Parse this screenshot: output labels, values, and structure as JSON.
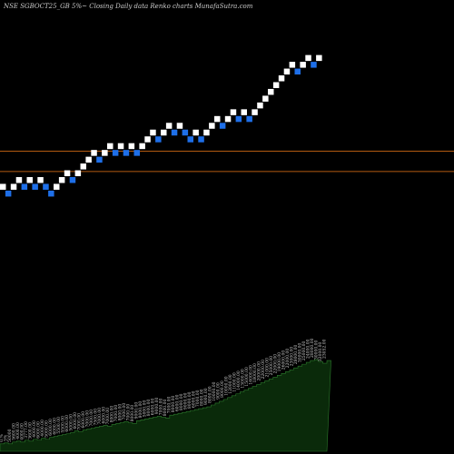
{
  "chart_data": {
    "type": "renko",
    "title": "NSE SGBOCT25_GB 5%~  Closing Daily data  Renko  charts MunafaSutra.com",
    "legend": "none",
    "grid": false,
    "colors": {
      "background": "#000000",
      "up_brick": "#ffffff",
      "down_brick": "#1e6fe8",
      "volume_fill": "#0a2a0a",
      "volume_line": "#2c7a2c",
      "level_line": "#b35a10"
    },
    "price_range": [
      6000,
      9000
    ],
    "level_lines": [
      7430,
      7190
    ],
    "bricks": [
      {
        "value": 7010,
        "dir": "up"
      },
      {
        "value": 6930,
        "dir": "down"
      },
      {
        "value": 7010,
        "dir": "up"
      },
      {
        "value": 7090,
        "dir": "up"
      },
      {
        "value": 7010,
        "dir": "down"
      },
      {
        "value": 7090,
        "dir": "up"
      },
      {
        "value": 7010,
        "dir": "down"
      },
      {
        "value": 7090,
        "dir": "up"
      },
      {
        "value": 7010,
        "dir": "down"
      },
      {
        "value": 6930,
        "dir": "down"
      },
      {
        "value": 7010,
        "dir": "up"
      },
      {
        "value": 7090,
        "dir": "up"
      },
      {
        "value": 7170,
        "dir": "up"
      },
      {
        "value": 7090,
        "dir": "down"
      },
      {
        "value": 7170,
        "dir": "up"
      },
      {
        "value": 7250,
        "dir": "up"
      },
      {
        "value": 7330,
        "dir": "up"
      },
      {
        "value": 7410,
        "dir": "up"
      },
      {
        "value": 7330,
        "dir": "down"
      },
      {
        "value": 7410,
        "dir": "up"
      },
      {
        "value": 7490,
        "dir": "up"
      },
      {
        "value": 7410,
        "dir": "down"
      },
      {
        "value": 7490,
        "dir": "up"
      },
      {
        "value": 7410,
        "dir": "down"
      },
      {
        "value": 7490,
        "dir": "up"
      },
      {
        "value": 7410,
        "dir": "down"
      },
      {
        "value": 7490,
        "dir": "up"
      },
      {
        "value": 7570,
        "dir": "up"
      },
      {
        "value": 7650,
        "dir": "up"
      },
      {
        "value": 7570,
        "dir": "down"
      },
      {
        "value": 7650,
        "dir": "up"
      },
      {
        "value": 7730,
        "dir": "up"
      },
      {
        "value": 7650,
        "dir": "down"
      },
      {
        "value": 7730,
        "dir": "up"
      },
      {
        "value": 7650,
        "dir": "down"
      },
      {
        "value": 7570,
        "dir": "down"
      },
      {
        "value": 7650,
        "dir": "up"
      },
      {
        "value": 7570,
        "dir": "down"
      },
      {
        "value": 7650,
        "dir": "up"
      },
      {
        "value": 7730,
        "dir": "up"
      },
      {
        "value": 7810,
        "dir": "up"
      },
      {
        "value": 7730,
        "dir": "down"
      },
      {
        "value": 7810,
        "dir": "up"
      },
      {
        "value": 7890,
        "dir": "up"
      },
      {
        "value": 7810,
        "dir": "down"
      },
      {
        "value": 7890,
        "dir": "up"
      },
      {
        "value": 7810,
        "dir": "down"
      },
      {
        "value": 7890,
        "dir": "up"
      },
      {
        "value": 7970,
        "dir": "up"
      },
      {
        "value": 8050,
        "dir": "up"
      },
      {
        "value": 8130,
        "dir": "up"
      },
      {
        "value": 8210,
        "dir": "up"
      },
      {
        "value": 8290,
        "dir": "up"
      },
      {
        "value": 8370,
        "dir": "up"
      },
      {
        "value": 8450,
        "dir": "up"
      },
      {
        "value": 8370,
        "dir": "down"
      },
      {
        "value": 8450,
        "dir": "up"
      },
      {
        "value": 8530,
        "dir": "up"
      },
      {
        "value": 8450,
        "dir": "down"
      },
      {
        "value": 8530,
        "dir": "up"
      }
    ],
    "volume": {
      "range": [
        0,
        100
      ],
      "values": [
        8,
        9,
        8,
        10,
        11,
        10,
        12,
        11,
        13,
        12,
        14,
        13,
        15,
        16,
        17,
        18,
        19,
        20,
        22,
        21,
        23,
        24,
        25,
        26,
        27,
        28,
        27,
        29,
        30,
        31,
        32,
        31,
        30,
        33,
        34,
        35,
        36,
        37,
        38,
        37,
        36,
        39,
        40,
        41,
        42,
        43,
        44,
        45,
        46,
        47,
        48,
        50,
        52,
        54,
        56,
        58,
        60,
        62,
        64,
        66,
        68,
        70,
        72,
        74,
        76,
        78,
        80,
        82,
        84,
        86,
        88,
        90,
        92,
        94,
        96,
        98,
        99,
        97,
        95,
        98
      ],
      "labels": [
        "0.%",
        "5%",
        "50000",
        "5600.00",
        "4000.00",
        "4000.00",
        "3777.00",
        "3600.00",
        "4000.00",
        "6000.00",
        "4000.00",
        "5000.00",
        "6000.00",
        "6000.00",
        "5500.00",
        "5500.00",
        "6000.00",
        "5000.00",
        "6000.00",
        "7000.00",
        "6000.00",
        "7000.00",
        "7000.00",
        "7500.00",
        "7000.00",
        "6000.00",
        "7000.00",
        "8000.00",
        "7000.00",
        "8000.00",
        "7000.00",
        "7000.00",
        "8000.00",
        "9000.00",
        "8000.00",
        "5000.00",
        "8000.00",
        "6000.00",
        "9000.00",
        "7000.00",
        "8000.00",
        "7000.00",
        "8000.00",
        "6000.00",
        "8000.00",
        "9000.00",
        "8000.00",
        "6000.00",
        "7000.00",
        "8000.00",
        "9000.00",
        "8000.00",
        "10000.00",
        "9000.00",
        "8000.00",
        "10000.00",
        "12000.00",
        "11000.00",
        "14000.00",
        "13000.00",
        "15000.00",
        "16000.00",
        "18000.00",
        "20000.00",
        "22000.00",
        "21000.00",
        "25000.00",
        "22000.00",
        "19000.00",
        "26000.00",
        "22000.00",
        "23000.00",
        "28000.00",
        "30000.00",
        "25000.00",
        "24000.00",
        "28000.00",
        "30000.00",
        "32000.00",
        "23052.00"
      ]
    }
  }
}
